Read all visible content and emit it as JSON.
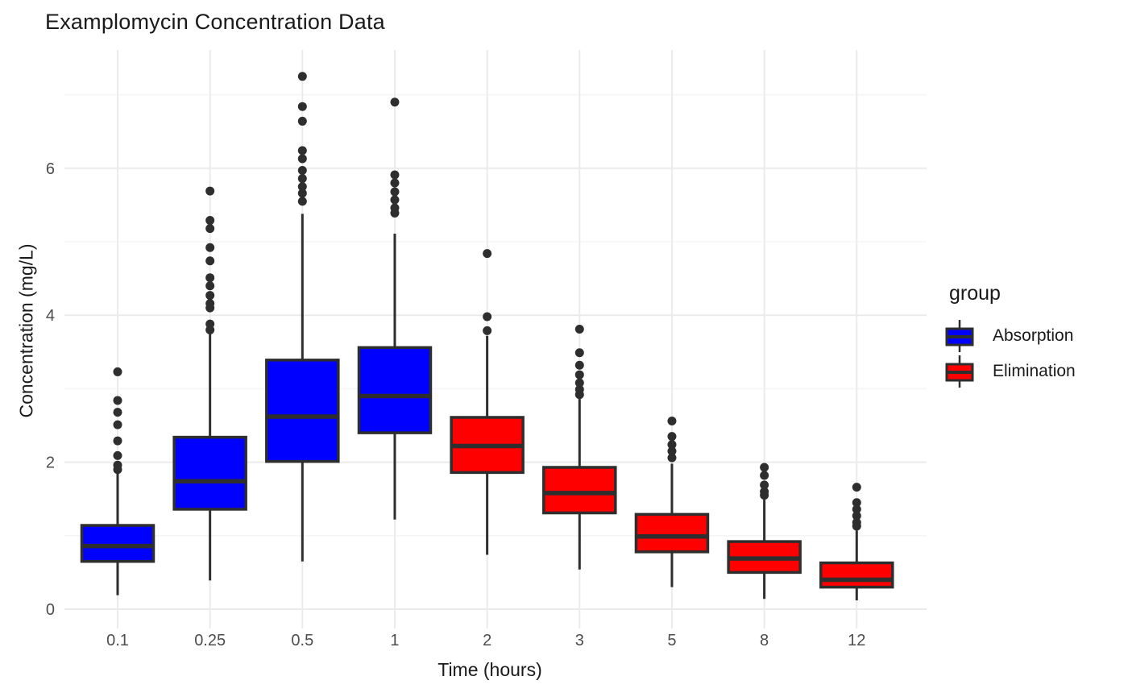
{
  "title": "Examplomycin Concentration Data",
  "axes": {
    "x_title": "Time (hours)",
    "y_title": "Concentration (mg/L)"
  },
  "legend": {
    "title": "group",
    "items": [
      {
        "label": "Absorption",
        "color": "#0000FF"
      },
      {
        "label": "Elimination",
        "color": "#FF0000"
      }
    ]
  },
  "colors": {
    "absorption": "#0000FF",
    "elimination": "#FF0000",
    "box_outline": "#2e2e2e",
    "outlier": "#2e2e2e",
    "grid_major": "#EBEBEB",
    "grid_minor": "#F5F5F5",
    "tick_label": "#4D4D4D",
    "text": "#1a1a1a",
    "background": "#FFFFFF"
  },
  "chart_data": {
    "type": "boxplot",
    "title": "Examplomycin Concentration Data",
    "xlabel": "Time (hours)",
    "ylabel": "Concentration (mg/L)",
    "categories": [
      "0.1",
      "0.25",
      "0.5",
      "1",
      "2",
      "3",
      "5",
      "8",
      "12"
    ],
    "groups": [
      "Absorption",
      "Elimination"
    ],
    "group_colors": {
      "Absorption": "#0000FF",
      "Elimination": "#FF0000"
    },
    "legend_position": "right",
    "ylim": [
      -0.3,
      7.6
    ],
    "yticks_major": [
      0,
      2,
      4,
      6
    ],
    "yticks_minor": [
      1,
      3,
      5,
      7
    ],
    "grid": true,
    "boxes": [
      {
        "time": "0.1",
        "group": "Absorption",
        "whisker_low": 0.19,
        "q1": 0.65,
        "median": 0.86,
        "q3": 1.14,
        "whisker_high": 1.85,
        "outliers": [
          1.9,
          1.96,
          2.09,
          2.29,
          2.51,
          2.68,
          2.84,
          3.23
        ]
      },
      {
        "time": "0.25",
        "group": "Absorption",
        "whisker_low": 0.39,
        "q1": 1.36,
        "median": 1.74,
        "q3": 2.34,
        "whisker_high": 3.76,
        "outliers": [
          3.8,
          3.88,
          4.1,
          4.16,
          4.27,
          4.4,
          4.51,
          4.74,
          4.92,
          5.18,
          5.29,
          5.69
        ]
      },
      {
        "time": "0.5",
        "group": "Absorption",
        "whisker_low": 0.65,
        "q1": 2.01,
        "median": 2.62,
        "q3": 3.39,
        "whisker_high": 5.38,
        "outliers": [
          5.55,
          5.66,
          5.75,
          5.86,
          5.97,
          6.13,
          6.24,
          6.64,
          6.84,
          7.25
        ]
      },
      {
        "time": "1",
        "group": "Absorption",
        "whisker_low": 1.22,
        "q1": 2.4,
        "median": 2.9,
        "q3": 3.56,
        "whisker_high": 5.11,
        "outliers": [
          5.39,
          5.46,
          5.57,
          5.68,
          5.8,
          5.91,
          6.9
        ]
      },
      {
        "time": "2",
        "group": "Elimination",
        "whisker_low": 0.74,
        "q1": 1.86,
        "median": 2.22,
        "q3": 2.61,
        "whisker_high": 3.72,
        "outliers": [
          3.79,
          3.98,
          4.84
        ]
      },
      {
        "time": "3",
        "group": "Elimination",
        "whisker_low": 0.54,
        "q1": 1.31,
        "median": 1.58,
        "q3": 1.93,
        "whisker_high": 2.86,
        "outliers": [
          2.92,
          2.99,
          3.08,
          3.19,
          3.32,
          3.49,
          3.81
        ]
      },
      {
        "time": "5",
        "group": "Elimination",
        "whisker_low": 0.3,
        "q1": 0.78,
        "median": 0.99,
        "q3": 1.29,
        "whisker_high": 1.98,
        "outliers": [
          2.06,
          2.15,
          2.24,
          2.35,
          2.56
        ]
      },
      {
        "time": "8",
        "group": "Elimination",
        "whisker_low": 0.14,
        "q1": 0.5,
        "median": 0.69,
        "q3": 0.92,
        "whisker_high": 1.49,
        "outliers": [
          1.55,
          1.6,
          1.69,
          1.82,
          1.93
        ]
      },
      {
        "time": "12",
        "group": "Elimination",
        "whisker_low": 0.12,
        "q1": 0.3,
        "median": 0.4,
        "q3": 0.63,
        "whisker_high": 1.07,
        "outliers": [
          1.13,
          1.18,
          1.27,
          1.36,
          1.45,
          1.66
        ]
      }
    ]
  }
}
